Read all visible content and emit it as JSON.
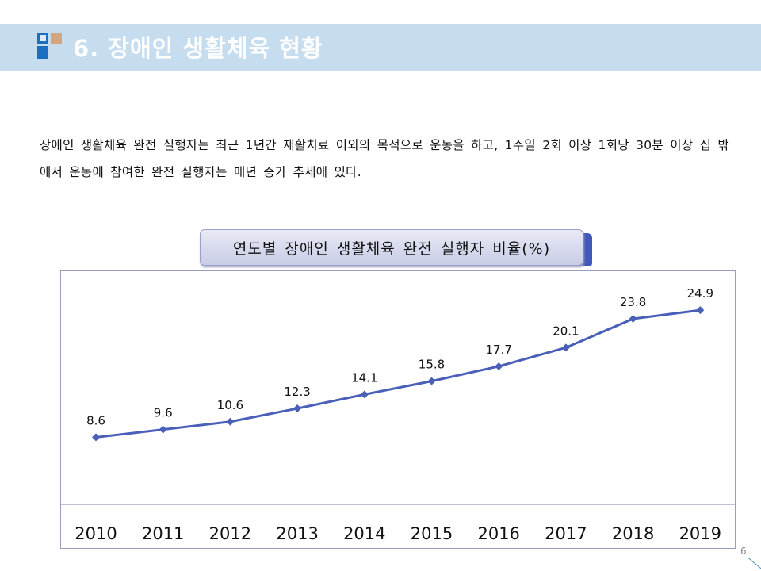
{
  "header": {
    "title": "6. 장애인 생활체육 현황",
    "logo_icon": "blue-squares-logo-icon"
  },
  "body": {
    "paragraph": "장애인 생활체육 완전 실행자는 최근 1년간 재활치료 이외의 목적으로 운동을 하고, 1주일 2회 이상 1회당 30분 이상 집 밖에서 운동에 참여한 완전 실행자는 매년 증가 추세에 있다."
  },
  "chart_title": "연도별 장애인 생활체육 완전 실행자 비율(%)",
  "colors": {
    "header_bg": "#c6ddf0",
    "line": "#4a5fb8",
    "accent_tab": "#4159b8"
  },
  "chart_data": {
    "type": "line",
    "title": "연도별 장애인 생활체육 완전 실행자 비율(%)",
    "categories": [
      "2010",
      "2011",
      "2012",
      "2013",
      "2014",
      "2015",
      "2016",
      "2017",
      "2018",
      "2019"
    ],
    "series": [
      {
        "name": "완전 실행자 비율(%)",
        "values": [
          8.6,
          9.6,
          10.6,
          12.3,
          14.1,
          15.8,
          17.7,
          20.1,
          23.8,
          24.9
        ],
        "labels": [
          "8.6",
          "9.6",
          "10.6",
          "12.3",
          "14.1",
          "15.8",
          "17.7",
          "20.1",
          "23.8",
          "24.9"
        ],
        "marker": "diamond"
      }
    ],
    "xlabel": "",
    "ylabel": "",
    "ylim": [
      0,
      30
    ],
    "grid": false,
    "legend": "none",
    "data_labels": true
  },
  "footer": {
    "page_number": "6"
  }
}
